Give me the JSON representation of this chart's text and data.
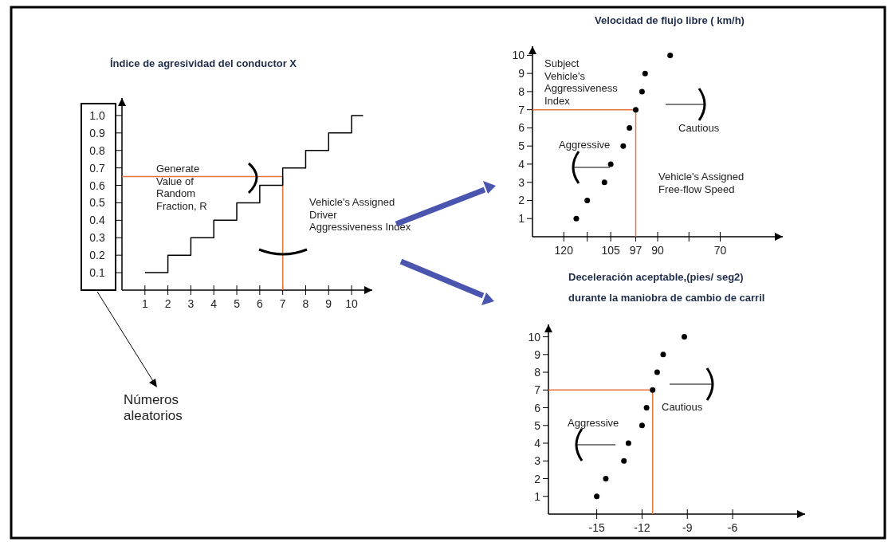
{
  "chart_data": [
    {
      "type": "step",
      "title": "Índice de agresividad del conductor X",
      "x": [
        1,
        2,
        3,
        4,
        5,
        6,
        7,
        8,
        9,
        10,
        10.5
      ],
      "values": [
        0.1,
        0.2,
        0.3,
        0.4,
        0.5,
        0.6,
        0.7,
        0.8,
        0.9,
        1.0,
        1.0
      ],
      "color": "#000000",
      "xlim": [
        0,
        10.9
      ],
      "ylim": [
        0,
        1.1
      ],
      "xticks": [
        1,
        2,
        3,
        4,
        5,
        6,
        7,
        8,
        9,
        10
      ],
      "yticks": [
        0.1,
        0.2,
        0.3,
        0.4,
        0.5,
        0.6,
        0.7,
        0.8,
        0.9,
        {
          "value": 1,
          "label": "1.0"
        }
      ],
      "ref_lines": [
        {
          "axis": "y",
          "value": 0.65,
          "color": "#e8743b"
        },
        {
          "axis": "x",
          "value": 7,
          "color": "#e8743b"
        }
      ],
      "annotations": [
        "Generate Value of Random Fraction, R",
        "Vehicle's Assigned Driver Aggressiveness Index",
        "Números aleatorios"
      ]
    },
    {
      "type": "scatter",
      "title": "Velocidad de flujo libre ( km/h)",
      "x": [
        116,
        112.5,
        107,
        105,
        101,
        99,
        97,
        95,
        94,
        86
      ],
      "values": [
        1,
        2,
        3,
        4,
        5,
        6,
        7,
        8,
        9,
        10
      ],
      "color": "#000000",
      "marker": "circle",
      "xlim": [
        130,
        50
      ],
      "ylim": [
        0,
        10.5
      ],
      "xticks": [
        120,
        {
          "value": 112.5,
          "label": null
        },
        105,
        97,
        90,
        {
          "value": 80,
          "label": null
        },
        70
      ],
      "yticks": [
        1,
        2,
        3,
        4,
        5,
        6,
        7,
        8,
        9,
        10
      ],
      "ref_lines": [
        {
          "axis": "y",
          "value": 7,
          "color": "#e8743b"
        },
        {
          "axis": "x",
          "value": 97,
          "color": "#e8743b"
        }
      ],
      "annotations": [
        "Subject Vehicle's Aggressiveness Index",
        "Aggressive",
        "Cautious",
        "Vehicle's Assigned Free-flow Speed"
      ]
    },
    {
      "type": "scatter",
      "title": "Deceleración aceptable,(pies/ seg2)",
      "subtitle": "durante la maniobra de cambio de carril",
      "x": [
        -15,
        -14.4,
        -13.2,
        -12.9,
        -12,
        -11.7,
        -11.3,
        -11,
        -10.6,
        -9.2
      ],
      "values": [
        1,
        2,
        3,
        4,
        5,
        6,
        7,
        8,
        9,
        10
      ],
      "color": "#000000",
      "marker": "circle",
      "xlim": [
        -18.2,
        -1.2
      ],
      "ylim": [
        0,
        10.7
      ],
      "xticks": [
        -15,
        -12,
        -9,
        -6
      ],
      "yticks": [
        1,
        2,
        3,
        4,
        5,
        6,
        7,
        8,
        9,
        10
      ],
      "ref_lines": [
        {
          "axis": "y",
          "value": 7,
          "color": "#e8743b"
        },
        {
          "axis": "x",
          "value": -11.3,
          "color": "#e8743b"
        }
      ],
      "annotations": [
        "Cautious",
        "Aggressive"
      ]
    }
  ]
}
